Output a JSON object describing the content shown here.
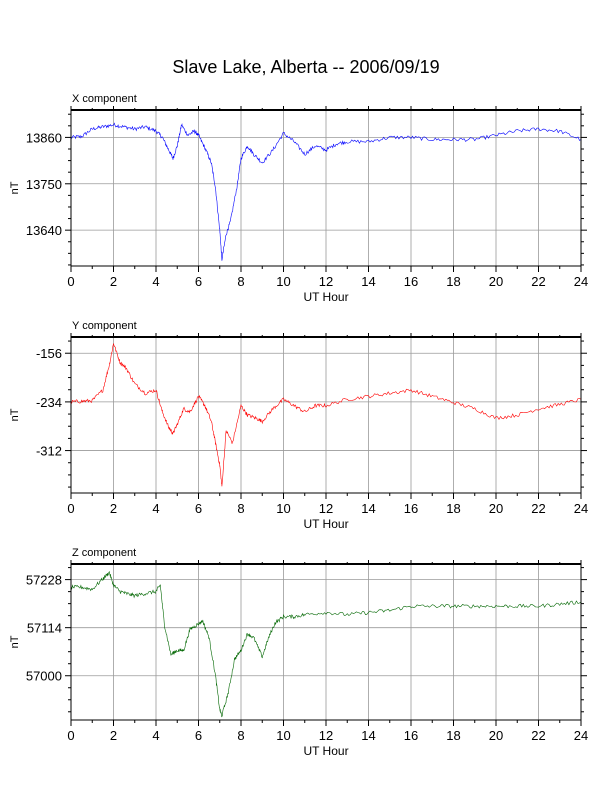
{
  "title": "Slave Lake, Alberta -- 2006/09/19",
  "chart_data": [
    {
      "type": "line",
      "title": "X component",
      "xlabel": "UT Hour",
      "ylabel": "nT",
      "color": "#0000ff",
      "xlim": [
        0,
        24
      ],
      "ylim": [
        13555,
        13925
      ],
      "xticks": [
        0,
        2,
        4,
        6,
        8,
        10,
        12,
        14,
        16,
        18,
        20,
        22,
        24
      ],
      "yticks": [
        13640,
        13750,
        13860
      ],
      "grid": true,
      "x": [
        0,
        0.5,
        1,
        1.5,
        2,
        2.5,
        3,
        3.5,
        4,
        4.3,
        4.6,
        4.8,
        5.0,
        5.2,
        5.5,
        5.8,
        6.0,
        6.3,
        6.6,
        6.8,
        7.0,
        7.1,
        7.3,
        7.5,
        7.8,
        8.0,
        8.3,
        8.6,
        9.0,
        9.5,
        10.0,
        10.5,
        11.0,
        11.5,
        12.0,
        12.5,
        13,
        14,
        15,
        16,
        17,
        18,
        19,
        20,
        21,
        22,
        23,
        24
      ],
      "values": [
        13860,
        13862,
        13880,
        13885,
        13890,
        13885,
        13880,
        13885,
        13875,
        13860,
        13830,
        13810,
        13840,
        13890,
        13865,
        13875,
        13865,
        13835,
        13800,
        13740,
        13640,
        13570,
        13630,
        13660,
        13740,
        13810,
        13840,
        13820,
        13800,
        13830,
        13870,
        13850,
        13820,
        13840,
        13830,
        13845,
        13850,
        13850,
        13860,
        13860,
        13855,
        13855,
        13855,
        13865,
        13875,
        13880,
        13875,
        13855
      ]
    },
    {
      "type": "line",
      "title": "Y component",
      "xlabel": "UT Hour",
      "ylabel": "nT",
      "color": "#ff0000",
      "xlim": [
        0,
        24
      ],
      "ylim": [
        -380,
        -130
      ],
      "xticks": [
        0,
        2,
        4,
        6,
        8,
        10,
        12,
        14,
        16,
        18,
        20,
        22,
        24
      ],
      "yticks": [
        -312,
        -234,
        -156
      ],
      "grid": true,
      "x": [
        0,
        0.5,
        1,
        1.5,
        1.8,
        2.0,
        2.3,
        2.6,
        3.0,
        3.5,
        4.0,
        4.3,
        4.6,
        4.8,
        5.0,
        5.3,
        5.6,
        6.0,
        6.3,
        6.6,
        6.8,
        7.0,
        7.1,
        7.3,
        7.6,
        8.0,
        8.3,
        8.7,
        9.0,
        9.5,
        10.0,
        10.5,
        11.0,
        11.5,
        12.0,
        13,
        14,
        15,
        16,
        17,
        18,
        19,
        20,
        21,
        22,
        23,
        24
      ],
      "values": [
        -234,
        -233,
        -232,
        -215,
        -175,
        -140,
        -170,
        -180,
        -205,
        -220,
        -215,
        -250,
        -275,
        -285,
        -270,
        -245,
        -250,
        -225,
        -240,
        -265,
        -300,
        -335,
        -370,
        -280,
        -300,
        -240,
        -255,
        -260,
        -265,
        -245,
        -230,
        -240,
        -250,
        -240,
        -240,
        -230,
        -225,
        -220,
        -215,
        -225,
        -235,
        -245,
        -260,
        -255,
        -245,
        -238,
        -230
      ]
    },
    {
      "type": "line",
      "title": "Z component",
      "xlabel": "UT Hour",
      "ylabel": "nT",
      "color": "#006600",
      "xlim": [
        0,
        24
      ],
      "ylim": [
        56895,
        57265
      ],
      "xticks": [
        0,
        2,
        4,
        6,
        8,
        10,
        12,
        14,
        16,
        18,
        20,
        22,
        24
      ],
      "yticks": [
        57000,
        57114,
        57228
      ],
      "grid": true,
      "x": [
        0,
        0.5,
        1,
        1.5,
        1.8,
        2.0,
        2.3,
        2.6,
        3.0,
        3.5,
        4.0,
        4.2,
        4.4,
        4.7,
        5.0,
        5.3,
        5.6,
        5.9,
        6.2,
        6.5,
        6.8,
        7.0,
        7.1,
        7.4,
        7.7,
        8.0,
        8.3,
        8.6,
        9.0,
        9.3,
        9.6,
        10.0,
        10.5,
        11,
        12,
        13,
        14,
        15,
        16,
        17,
        18,
        19,
        20,
        21,
        22,
        23,
        24
      ],
      "values": [
        57210,
        57210,
        57205,
        57230,
        57245,
        57215,
        57200,
        57195,
        57190,
        57195,
        57200,
        57215,
        57120,
        57050,
        57060,
        57060,
        57110,
        57120,
        57130,
        57090,
        57000,
        56920,
        56905,
        56960,
        57040,
        57060,
        57100,
        57090,
        57045,
        57090,
        57125,
        57140,
        57140,
        57145,
        57150,
        57145,
        57150,
        57155,
        57165,
        57165,
        57165,
        57165,
        57165,
        57165,
        57165,
        57170,
        57175
      ]
    }
  ]
}
